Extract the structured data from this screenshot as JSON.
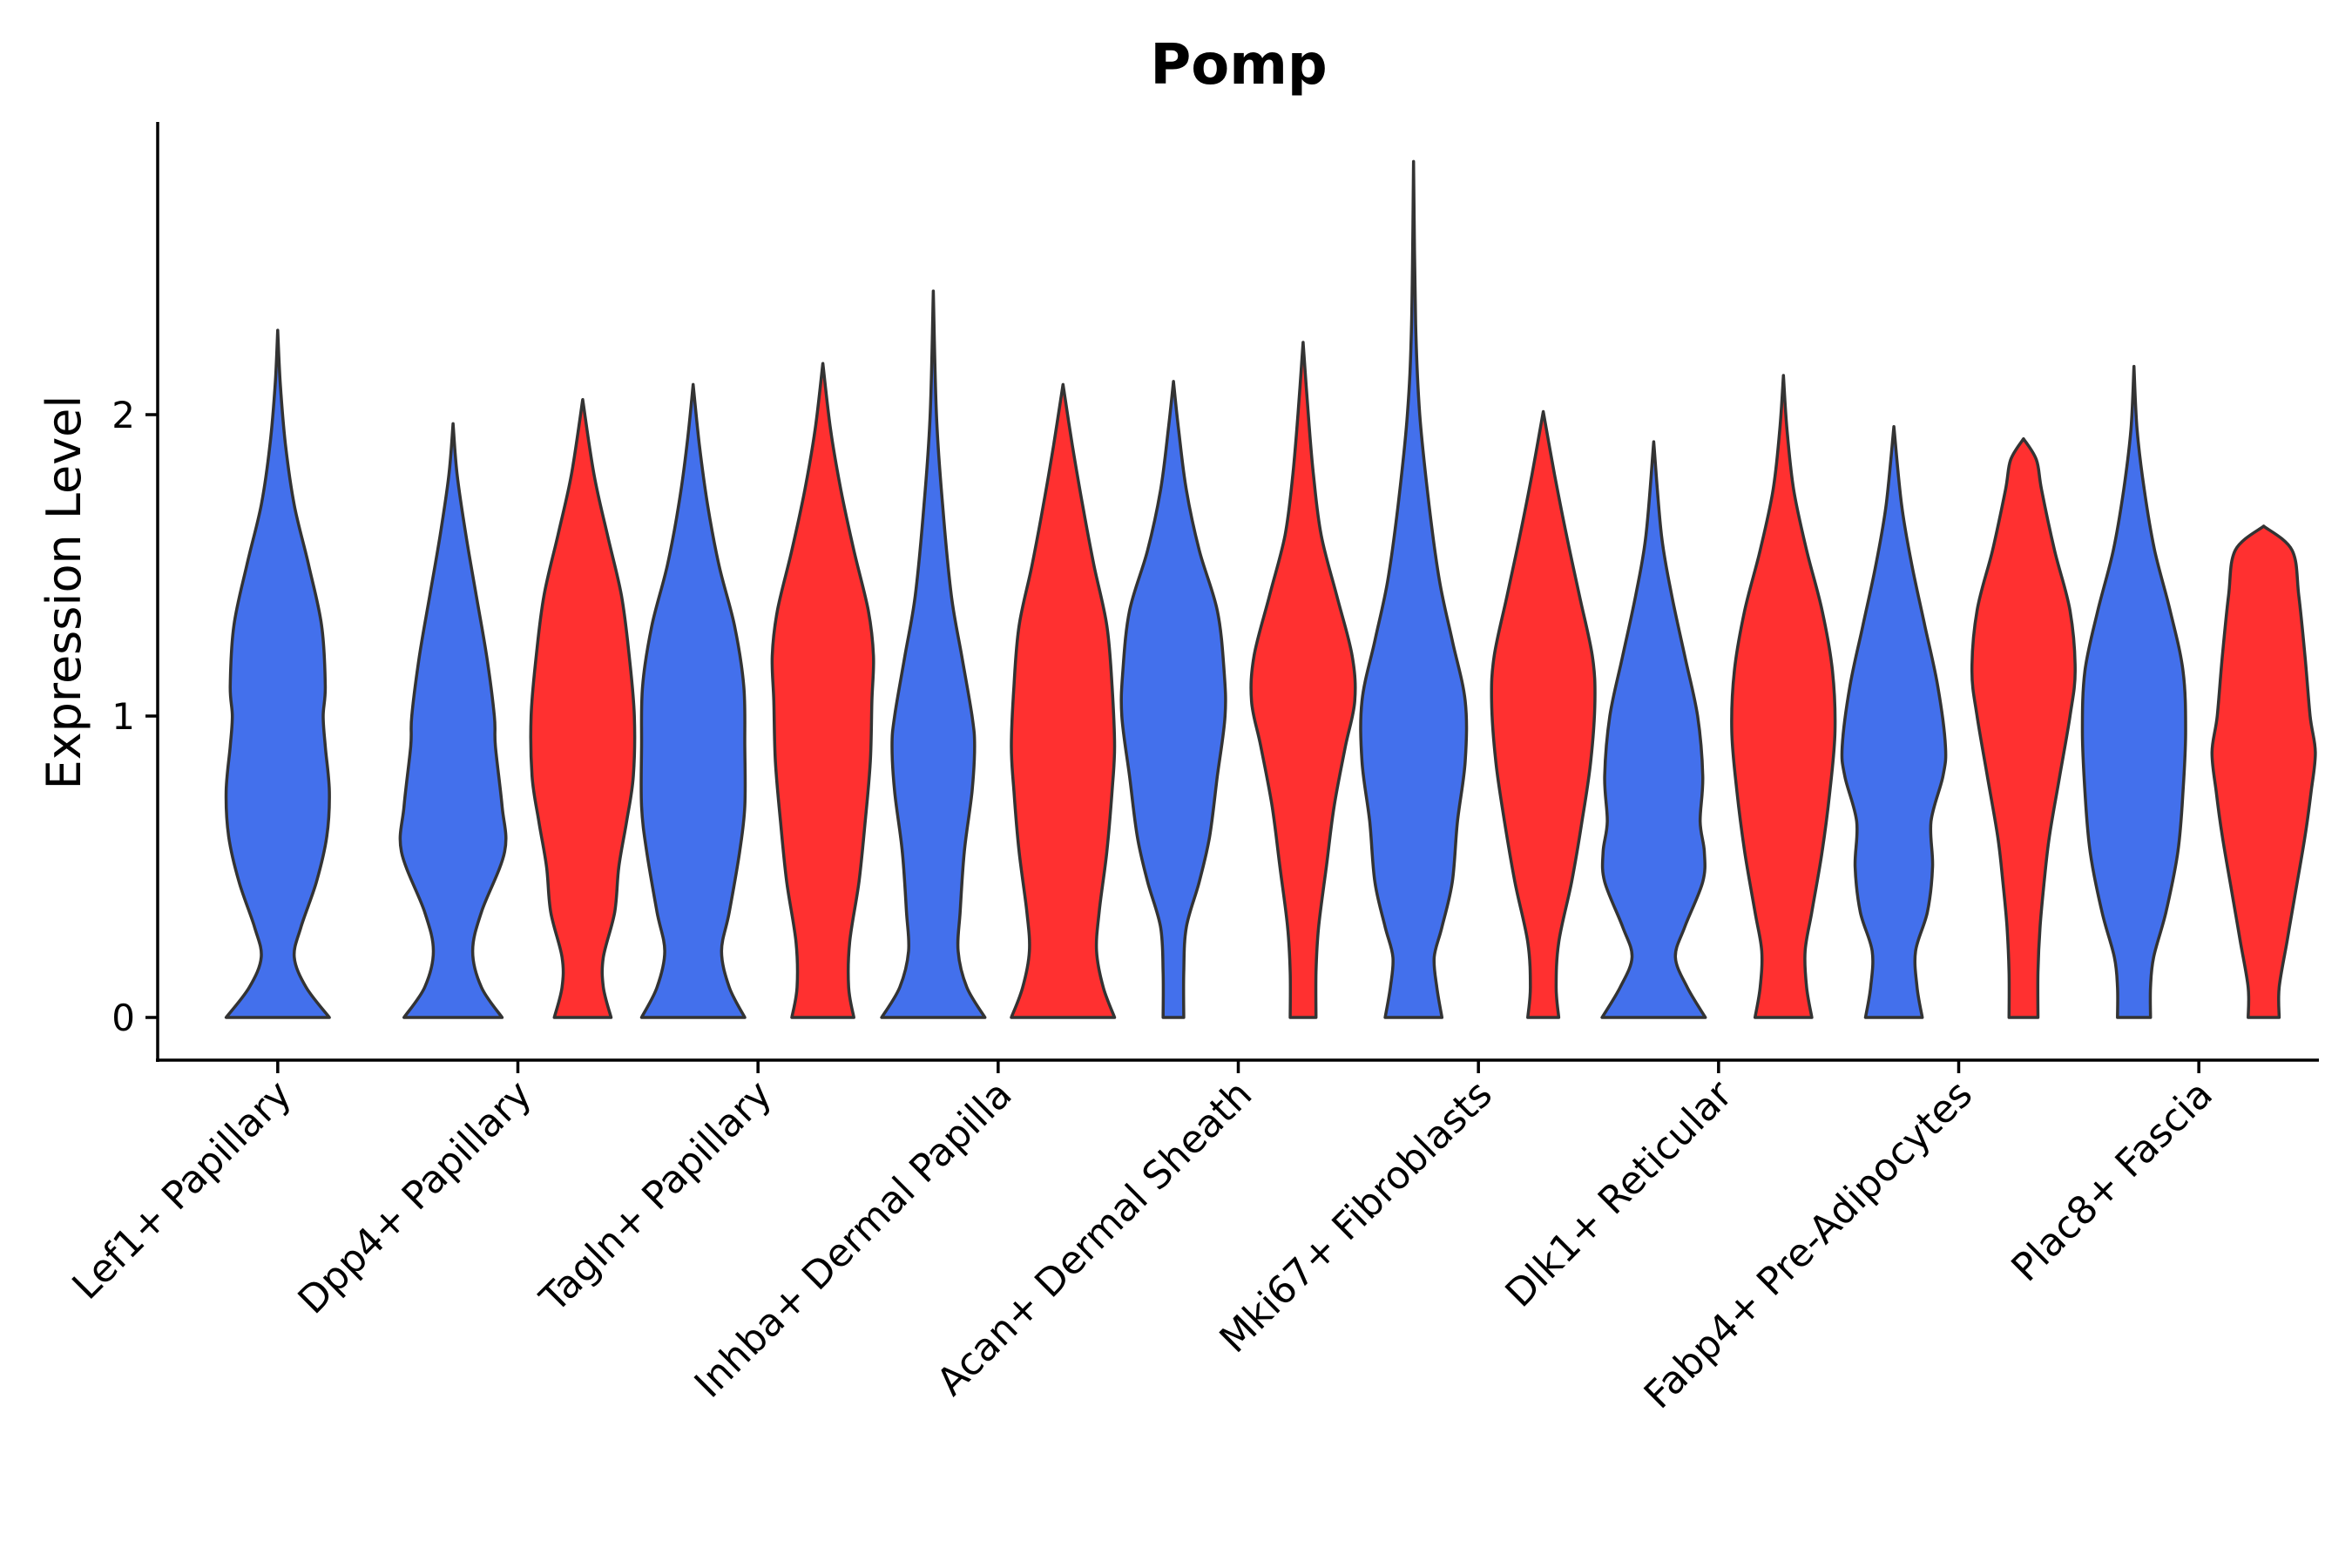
{
  "chart_data": {
    "type": "violin",
    "title": "Pomp",
    "xlabel": "",
    "ylabel": "Expression Level",
    "ylim": [
      -0.14,
      2.97
    ],
    "yticks": [
      0,
      1,
      2
    ],
    "colors": {
      "group1": "#4370EC",
      "group2": "#FF3030",
      "outline": "#333333"
    },
    "categories": [
      "Lef1+ Papillary",
      "Dpp4+ Papillary",
      "Tagln+ Papillary",
      "Inhba+ Dermal Papilla",
      "Acan+ Dermal Sheath",
      "Mki67+ Fibroblasts",
      "Dlk1+ Reticular",
      "Fabp4+ Pre-Adipocytes",
      "Plac8+ Fascia"
    ],
    "series": [
      {
        "name": "group1",
        "violins": [
          {
            "max": 2.28,
            "profile": [
              [
                0,
                1.0
              ],
              [
                0.1,
                0.55
              ],
              [
                0.2,
                0.32
              ],
              [
                0.3,
                0.45
              ],
              [
                0.45,
                0.75
              ],
              [
                0.6,
                0.95
              ],
              [
                0.75,
                1.0
              ],
              [
                0.9,
                0.92
              ],
              [
                1.0,
                0.88
              ],
              [
                1.1,
                0.92
              ],
              [
                1.3,
                0.85
              ],
              [
                1.5,
                0.6
              ],
              [
                1.7,
                0.32
              ],
              [
                1.9,
                0.15
              ],
              [
                2.1,
                0.05
              ],
              [
                2.28,
                0
              ]
            ]
          },
          {
            "max": 1.97,
            "profile": [
              [
                0,
                0.95
              ],
              [
                0.1,
                0.55
              ],
              [
                0.22,
                0.38
              ],
              [
                0.35,
                0.55
              ],
              [
                0.55,
                1.0
              ],
              [
                0.7,
                0.95
              ],
              [
                0.9,
                0.82
              ],
              [
                1.0,
                0.8
              ],
              [
                1.2,
                0.65
              ],
              [
                1.4,
                0.45
              ],
              [
                1.6,
                0.25
              ],
              [
                1.8,
                0.08
              ],
              [
                1.97,
                0
              ]
            ]
          },
          {
            "max": 2.1,
            "profile": [
              [
                0,
                1.0
              ],
              [
                0.1,
                0.7
              ],
              [
                0.22,
                0.55
              ],
              [
                0.35,
                0.7
              ],
              [
                0.55,
                0.9
              ],
              [
                0.7,
                1.0
              ],
              [
                0.9,
                1.0
              ],
              [
                1.1,
                0.98
              ],
              [
                1.3,
                0.8
              ],
              [
                1.5,
                0.5
              ],
              [
                1.7,
                0.28
              ],
              [
                1.9,
                0.12
              ],
              [
                2.1,
                0
              ]
            ]
          },
          {
            "max": 2.41,
            "profile": [
              [
                0,
                1.0
              ],
              [
                0.1,
                0.65
              ],
              [
                0.22,
                0.48
              ],
              [
                0.35,
                0.52
              ],
              [
                0.55,
                0.6
              ],
              [
                0.75,
                0.75
              ],
              [
                0.9,
                0.8
              ],
              [
                1.0,
                0.75
              ],
              [
                1.2,
                0.55
              ],
              [
                1.4,
                0.35
              ],
              [
                1.7,
                0.18
              ],
              [
                2.0,
                0.06
              ],
              [
                2.41,
                0
              ]
            ]
          },
          {
            "max": 2.11,
            "profile": [
              [
                0,
                0.2
              ],
              [
                0.15,
                0.2
              ],
              [
                0.3,
                0.25
              ],
              [
                0.45,
                0.5
              ],
              [
                0.6,
                0.7
              ],
              [
                0.8,
                0.85
              ],
              [
                1.0,
                1.0
              ],
              [
                1.15,
                0.98
              ],
              [
                1.35,
                0.85
              ],
              [
                1.55,
                0.5
              ],
              [
                1.75,
                0.25
              ],
              [
                1.95,
                0.1
              ],
              [
                2.11,
                0
              ]
            ]
          },
          {
            "max": 2.84,
            "profile": [
              [
                0,
                0.55
              ],
              [
                0.1,
                0.45
              ],
              [
                0.2,
                0.4
              ],
              [
                0.3,
                0.55
              ],
              [
                0.45,
                0.75
              ],
              [
                0.65,
                0.85
              ],
              [
                0.85,
                1.0
              ],
              [
                1.05,
                1.0
              ],
              [
                1.25,
                0.75
              ],
              [
                1.45,
                0.5
              ],
              [
                1.7,
                0.3
              ],
              [
                2.0,
                0.12
              ],
              [
                2.3,
                0.04
              ],
              [
                2.84,
                0
              ]
            ]
          },
          {
            "max": 1.91,
            "profile": [
              [
                0,
                1.0
              ],
              [
                0.1,
                0.65
              ],
              [
                0.2,
                0.42
              ],
              [
                0.3,
                0.6
              ],
              [
                0.45,
                0.95
              ],
              [
                0.55,
                0.98
              ],
              [
                0.65,
                0.9
              ],
              [
                0.8,
                0.95
              ],
              [
                1.0,
                0.85
              ],
              [
                1.2,
                0.6
              ],
              [
                1.4,
                0.35
              ],
              [
                1.6,
                0.15
              ],
              [
                1.91,
                0
              ]
            ]
          },
          {
            "max": 1.96,
            "profile": [
              [
                0,
                0.55
              ],
              [
                0.1,
                0.45
              ],
              [
                0.22,
                0.42
              ],
              [
                0.35,
                0.65
              ],
              [
                0.5,
                0.75
              ],
              [
                0.65,
                0.72
              ],
              [
                0.8,
                0.95
              ],
              [
                0.9,
                1.0
              ],
              [
                1.1,
                0.85
              ],
              [
                1.3,
                0.6
              ],
              [
                1.5,
                0.35
              ],
              [
                1.7,
                0.15
              ],
              [
                1.96,
                0
              ]
            ]
          },
          {
            "max": 2.16,
            "profile": [
              [
                0,
                0.32
              ],
              [
                0.1,
                0.32
              ],
              [
                0.2,
                0.38
              ],
              [
                0.35,
                0.62
              ],
              [
                0.55,
                0.85
              ],
              [
                0.75,
                0.95
              ],
              [
                0.95,
                1.0
              ],
              [
                1.15,
                0.95
              ],
              [
                1.35,
                0.7
              ],
              [
                1.55,
                0.4
              ],
              [
                1.75,
                0.2
              ],
              [
                1.95,
                0.06
              ],
              [
                2.16,
                0
              ]
            ]
          }
        ]
      },
      {
        "name": "group2",
        "violins": [
          {
            "max": 0,
            "profile": []
          },
          {
            "max": 2.05,
            "profile": [
              [
                0,
                0.55
              ],
              [
                0.1,
                0.4
              ],
              [
                0.2,
                0.4
              ],
              [
                0.35,
                0.62
              ],
              [
                0.5,
                0.7
              ],
              [
                0.65,
                0.85
              ],
              [
                0.8,
                0.98
              ],
              [
                1.0,
                1.0
              ],
              [
                1.2,
                0.9
              ],
              [
                1.4,
                0.75
              ],
              [
                1.6,
                0.48
              ],
              [
                1.8,
                0.22
              ],
              [
                2.05,
                0
              ]
            ]
          },
          {
            "max": 2.17,
            "profile": [
              [
                0,
                0.6
              ],
              [
                0.1,
                0.5
              ],
              [
                0.25,
                0.52
              ],
              [
                0.45,
                0.7
              ],
              [
                0.65,
                0.82
              ],
              [
                0.85,
                0.92
              ],
              [
                1.05,
                0.95
              ],
              [
                1.2,
                0.98
              ],
              [
                1.35,
                0.88
              ],
              [
                1.55,
                0.6
              ],
              [
                1.75,
                0.35
              ],
              [
                1.95,
                0.15
              ],
              [
                2.17,
                0
              ]
            ]
          },
          {
            "max": 2.1,
            "profile": [
              [
                0,
                1.0
              ],
              [
                0.1,
                0.78
              ],
              [
                0.22,
                0.65
              ],
              [
                0.35,
                0.7
              ],
              [
                0.55,
                0.85
              ],
              [
                0.75,
                0.95
              ],
              [
                0.9,
                1.0
              ],
              [
                1.1,
                0.95
              ],
              [
                1.3,
                0.85
              ],
              [
                1.5,
                0.6
              ],
              [
                1.7,
                0.38
              ],
              [
                1.9,
                0.18
              ],
              [
                2.1,
                0
              ]
            ]
          },
          {
            "max": 2.24,
            "profile": [
              [
                0,
                0.25
              ],
              [
                0.15,
                0.25
              ],
              [
                0.3,
                0.3
              ],
              [
                0.5,
                0.45
              ],
              [
                0.7,
                0.6
              ],
              [
                0.9,
                0.82
              ],
              [
                1.05,
                1.0
              ],
              [
                1.2,
                0.95
              ],
              [
                1.4,
                0.65
              ],
              [
                1.6,
                0.35
              ],
              [
                1.8,
                0.2
              ],
              [
                2.0,
                0.1
              ],
              [
                2.24,
                0
              ]
            ]
          },
          {
            "max": 2.01,
            "profile": [
              [
                0,
                0.3
              ],
              [
                0.1,
                0.25
              ],
              [
                0.25,
                0.3
              ],
              [
                0.45,
                0.55
              ],
              [
                0.65,
                0.75
              ],
              [
                0.85,
                0.92
              ],
              [
                1.05,
                1.0
              ],
              [
                1.2,
                0.95
              ],
              [
                1.4,
                0.7
              ],
              [
                1.6,
                0.45
              ],
              [
                1.8,
                0.22
              ],
              [
                2.01,
                0
              ]
            ]
          },
          {
            "max": 2.13,
            "profile": [
              [
                0,
                0.55
              ],
              [
                0.1,
                0.45
              ],
              [
                0.22,
                0.42
              ],
              [
                0.35,
                0.55
              ],
              [
                0.55,
                0.75
              ],
              [
                0.75,
                0.9
              ],
              [
                0.95,
                1.0
              ],
              [
                1.15,
                0.95
              ],
              [
                1.35,
                0.75
              ],
              [
                1.55,
                0.45
              ],
              [
                1.75,
                0.2
              ],
              [
                1.95,
                0.07
              ],
              [
                2.13,
                0
              ]
            ]
          },
          {
            "max": 1.92,
            "profile": [
              [
                0,
                0.28
              ],
              [
                0.15,
                0.28
              ],
              [
                0.3,
                0.32
              ],
              [
                0.45,
                0.4
              ],
              [
                0.6,
                0.5
              ],
              [
                0.8,
                0.7
              ],
              [
                1.0,
                0.9
              ],
              [
                1.15,
                1.0
              ],
              [
                1.35,
                0.9
              ],
              [
                1.55,
                0.6
              ],
              [
                1.75,
                0.35
              ],
              [
                1.85,
                0.25
              ],
              [
                1.92,
                0
              ]
            ]
          },
          {
            "max": 1.63,
            "profile": [
              [
                0,
                0.3
              ],
              [
                0.1,
                0.3
              ],
              [
                0.25,
                0.45
              ],
              [
                0.4,
                0.6
              ],
              [
                0.6,
                0.8
              ],
              [
                0.75,
                0.92
              ],
              [
                0.88,
                1.0
              ],
              [
                1.0,
                0.9
              ],
              [
                1.2,
                0.8
              ],
              [
                1.4,
                0.68
              ],
              [
                1.55,
                0.55
              ],
              [
                1.63,
                0
              ]
            ]
          }
        ]
      }
    ]
  }
}
